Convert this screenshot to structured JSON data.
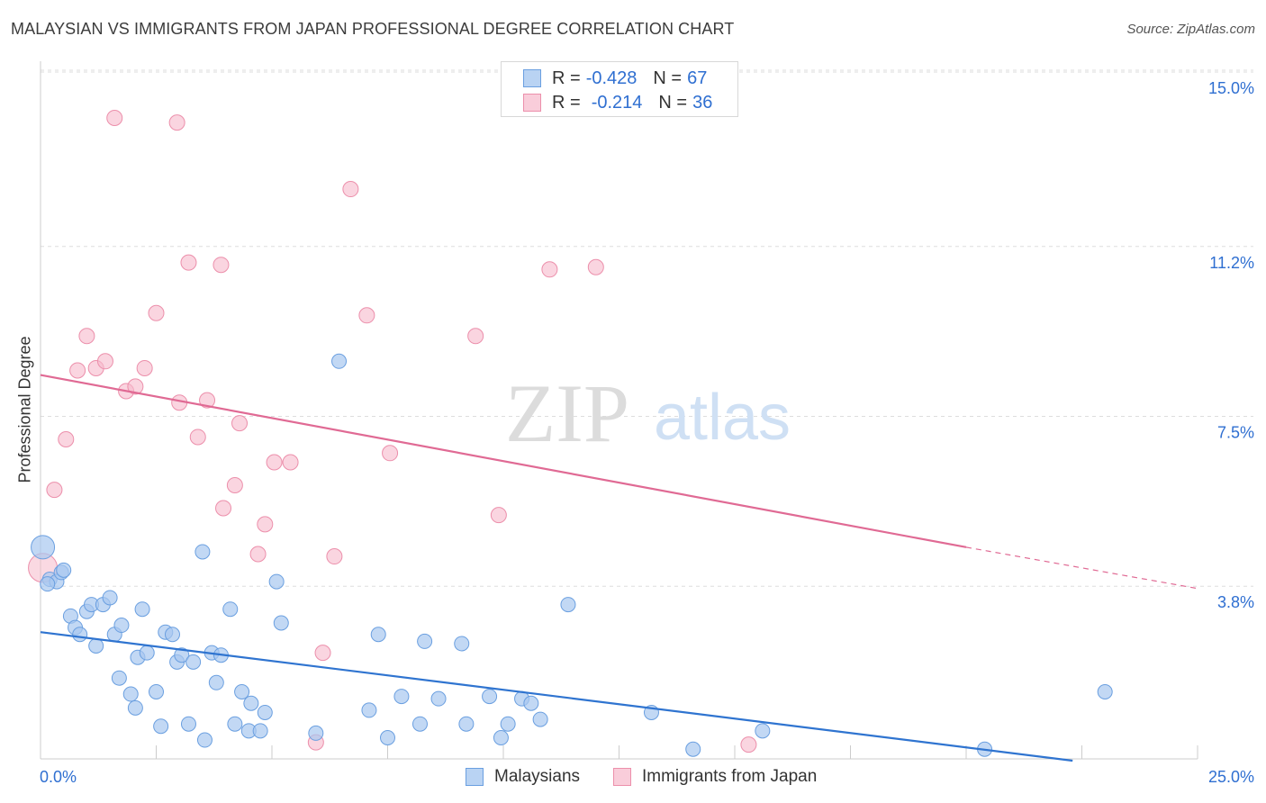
{
  "header": {
    "title": "MALAYSIAN VS IMMIGRANTS FROM JAPAN PROFESSIONAL DEGREE CORRELATION CHART",
    "source": "Source: ZipAtlas.com"
  },
  "watermark": {
    "zip": "ZIP",
    "atlas": "atlas"
  },
  "legend_top": {
    "rows": [
      {
        "r_label": "R =",
        "r_value": "-0.428",
        "n_label": "N =",
        "n_value": "67"
      },
      {
        "r_label": "R =",
        "r_value": "-0.214",
        "n_label": "N =",
        "n_value": "36"
      }
    ]
  },
  "legend_bottom": {
    "items": [
      "Malaysians",
      "Immigrants from Japan"
    ]
  },
  "colors": {
    "blue_fill": "#a8c8f0",
    "blue_stroke": "#6a9fe0",
    "blue_line": "#2f74d0",
    "pink_fill": "#f6b9cb",
    "pink_stroke": "#ec8fab",
    "pink_line": "#e06a94",
    "grid": "#dddddd",
    "tick_text": "#2f6fd1"
  },
  "chart_data": {
    "type": "scatter",
    "title": "MALAYSIAN VS IMMIGRANTS FROM JAPAN PROFESSIONAL DEGREE CORRELATION CHART",
    "xlabel": "",
    "ylabel": "Professional Degree",
    "xlim": [
      0,
      25
    ],
    "ylim": [
      0,
      15.5
    ],
    "x_tick_labels": [
      "0.0%",
      "25.0%"
    ],
    "y_ticks": [
      3.8,
      7.5,
      11.2,
      15.0
    ],
    "y_tick_labels": [
      "3.8%",
      "7.5%",
      "11.2%",
      "15.0%"
    ],
    "grid": "horizontal dashed",
    "legend_position": "top-center",
    "series": [
      {
        "name": "Malaysians",
        "color": "#a8c8f0",
        "r": -0.428,
        "n": 67,
        "trend": {
          "x": [
            0,
            22.3
          ],
          "y": [
            2.8,
            0.0
          ]
        },
        "points": [
          [
            0.05,
            4.65
          ],
          [
            0.2,
            3.95
          ],
          [
            0.35,
            3.9
          ],
          [
            0.45,
            4.1
          ],
          [
            0.5,
            4.15
          ],
          [
            0.65,
            3.15
          ],
          [
            0.75,
            2.9
          ],
          [
            0.85,
            2.75
          ],
          [
            1.0,
            3.25
          ],
          [
            1.1,
            3.4
          ],
          [
            1.2,
            2.5
          ],
          [
            1.35,
            3.4
          ],
          [
            1.5,
            3.55
          ],
          [
            1.6,
            2.75
          ],
          [
            1.7,
            1.8
          ],
          [
            1.75,
            2.95
          ],
          [
            1.95,
            1.45
          ],
          [
            2.05,
            1.15
          ],
          [
            2.1,
            2.25
          ],
          [
            2.2,
            3.3
          ],
          [
            2.3,
            2.35
          ],
          [
            2.5,
            1.5
          ],
          [
            2.6,
            0.75
          ],
          [
            2.7,
            2.8
          ],
          [
            2.85,
            2.75
          ],
          [
            2.95,
            2.15
          ],
          [
            3.05,
            2.3
          ],
          [
            3.2,
            0.8
          ],
          [
            3.3,
            2.15
          ],
          [
            3.5,
            4.55
          ],
          [
            3.55,
            0.45
          ],
          [
            3.7,
            2.35
          ],
          [
            3.8,
            1.7
          ],
          [
            3.9,
            2.3
          ],
          [
            4.1,
            3.3
          ],
          [
            4.2,
            0.8
          ],
          [
            4.35,
            1.5
          ],
          [
            4.5,
            0.65
          ],
          [
            4.55,
            1.25
          ],
          [
            4.75,
            0.65
          ],
          [
            4.85,
            1.05
          ],
          [
            5.1,
            3.9
          ],
          [
            5.2,
            3.0
          ],
          [
            5.95,
            0.6
          ],
          [
            6.45,
            8.7
          ],
          [
            7.1,
            1.1
          ],
          [
            7.3,
            2.75
          ],
          [
            7.5,
            0.5
          ],
          [
            7.8,
            1.4
          ],
          [
            8.2,
            0.8
          ],
          [
            8.3,
            2.6
          ],
          [
            8.6,
            1.35
          ],
          [
            9.1,
            2.55
          ],
          [
            9.2,
            0.8
          ],
          [
            9.7,
            1.4
          ],
          [
            9.95,
            0.5
          ],
          [
            10.1,
            0.8
          ],
          [
            10.4,
            1.35
          ],
          [
            10.6,
            1.25
          ],
          [
            10.8,
            0.9
          ],
          [
            11.4,
            3.4
          ],
          [
            13.2,
            1.05
          ],
          [
            14.1,
            0.25
          ],
          [
            15.6,
            0.65
          ],
          [
            20.4,
            0.25
          ],
          [
            23.0,
            1.5
          ],
          [
            0.15,
            3.85
          ]
        ]
      },
      {
        "name": "Immigrants from Japan",
        "color": "#f6b9cb",
        "r": -0.214,
        "n": 36,
        "trend": {
          "x": [
            0,
            20.0,
            25.0
          ],
          "y": [
            8.4,
            4.65,
            3.75
          ],
          "solid_until": 20.0
        },
        "points": [
          [
            0.05,
            4.2
          ],
          [
            0.3,
            5.9
          ],
          [
            0.55,
            7.0
          ],
          [
            0.8,
            8.5
          ],
          [
            1.0,
            9.25
          ],
          [
            1.2,
            8.55
          ],
          [
            1.4,
            8.7
          ],
          [
            1.6,
            14.0
          ],
          [
            1.85,
            8.05
          ],
          [
            2.05,
            8.15
          ],
          [
            2.25,
            8.55
          ],
          [
            2.5,
            9.75
          ],
          [
            2.95,
            13.9
          ],
          [
            3.0,
            7.8
          ],
          [
            3.2,
            10.85
          ],
          [
            3.4,
            7.05
          ],
          [
            3.6,
            7.85
          ],
          [
            3.9,
            10.8
          ],
          [
            3.95,
            5.5
          ],
          [
            4.2,
            6.0
          ],
          [
            4.3,
            7.35
          ],
          [
            4.7,
            4.5
          ],
          [
            4.85,
            5.15
          ],
          [
            5.05,
            6.5
          ],
          [
            5.4,
            6.5
          ],
          [
            5.95,
            0.4
          ],
          [
            6.1,
            2.35
          ],
          [
            6.35,
            4.45
          ],
          [
            6.7,
            12.45
          ],
          [
            7.05,
            9.7
          ],
          [
            7.55,
            6.7
          ],
          [
            9.4,
            9.25
          ],
          [
            9.9,
            5.35
          ],
          [
            11.0,
            10.7
          ],
          [
            12.0,
            10.75
          ],
          [
            15.3,
            0.35
          ]
        ]
      }
    ]
  }
}
